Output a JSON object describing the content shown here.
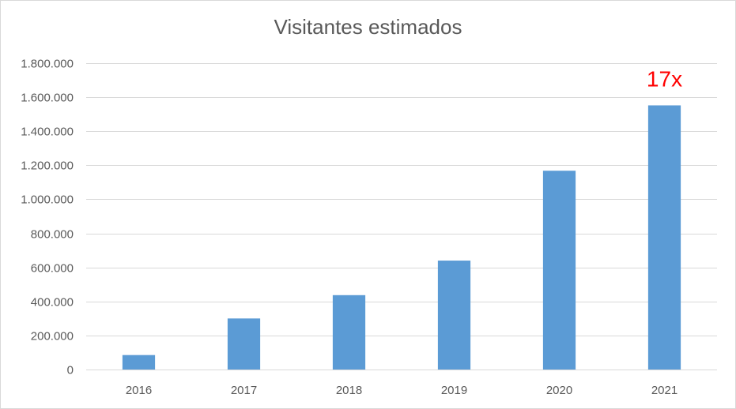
{
  "chart_data": {
    "type": "bar",
    "title": "Visitantes estimados",
    "categories": [
      "2016",
      "2017",
      "2018",
      "2019",
      "2020",
      "2021"
    ],
    "values": [
      85000,
      300000,
      437000,
      640000,
      1168000,
      1552000
    ],
    "ylim": [
      0,
      1800000
    ],
    "yticks": [
      0,
      200000,
      400000,
      600000,
      800000,
      1000000,
      1200000,
      1400000,
      1600000,
      1800000
    ],
    "ytick_labels": [
      "0",
      "200.000",
      "400.000",
      "600.000",
      "800.000",
      "1.000.000",
      "1.200.000",
      "1.400.000",
      "1.600.000",
      "1.800.000"
    ],
    "xlabel": "",
    "ylabel": "",
    "grid": true,
    "legend": "none",
    "bar_color": "#5b9bd5",
    "annotations": [
      {
        "text": "17x",
        "category": "2021",
        "color": "#ff0000"
      }
    ]
  }
}
